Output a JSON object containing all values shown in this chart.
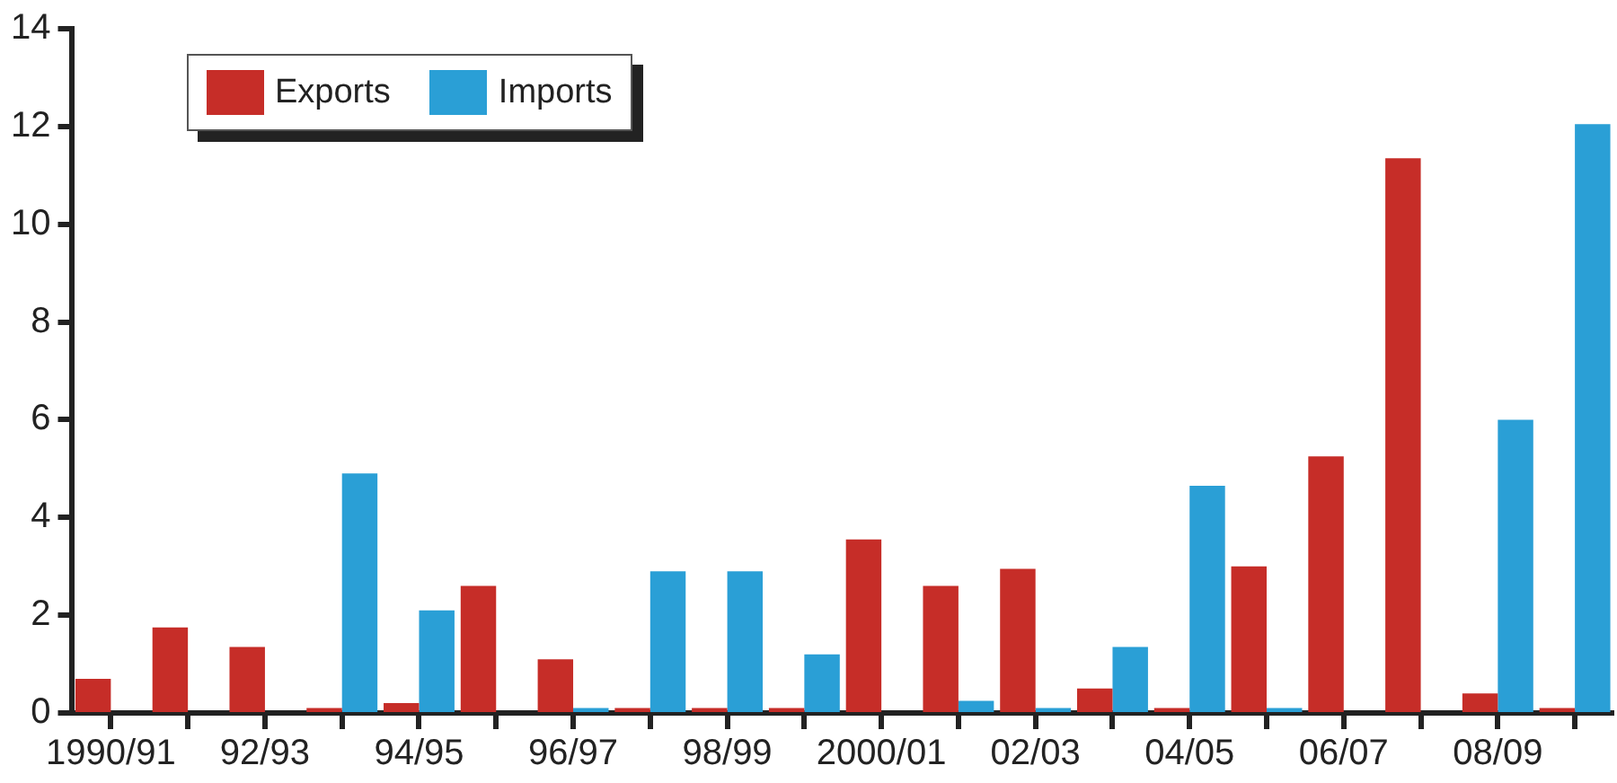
{
  "chart_data": {
    "type": "bar",
    "categories": [
      "1990/91",
      null,
      "92/93",
      null,
      "94/95",
      null,
      "96/97",
      null,
      "98/99",
      null,
      "2000/01",
      null,
      "02/03",
      null,
      "04/05",
      null,
      "06/07",
      null,
      "08/09",
      null
    ],
    "series": [
      {
        "name": "Exports",
        "color": "#c62d28",
        "values": [
          0.7,
          1.75,
          1.35,
          0.1,
          0.2,
          2.6,
          1.1,
          0.1,
          0.1,
          0.1,
          3.55,
          2.6,
          2.95,
          0.5,
          0.1,
          3.0,
          5.25,
          11.35,
          0.4,
          0.1
        ]
      },
      {
        "name": "Imports",
        "color": "#2a9fd6",
        "values": [
          0,
          0,
          0,
          4.9,
          2.1,
          0,
          0.1,
          2.9,
          2.9,
          1.2,
          0,
          0.25,
          0.1,
          1.35,
          4.65,
          0.1,
          0,
          0,
          6.0,
          12.05
        ]
      }
    ],
    "ylim": [
      0,
      14
    ],
    "yticks": [
      0,
      2,
      4,
      6,
      8,
      10,
      12,
      14
    ],
    "grid": false,
    "legend": "top left"
  }
}
